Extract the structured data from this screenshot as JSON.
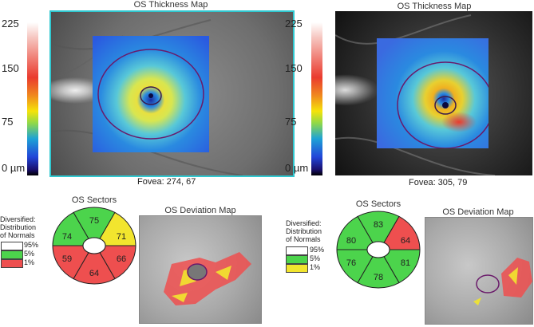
{
  "left": {
    "thickness_title": "OS Thickness Map",
    "scale_ticks": {
      "t225": "225",
      "t150": "150",
      "t75": "75",
      "t0": "0 µm"
    },
    "fovea": "Fovea: 274, 67",
    "sectors_title": "OS Sectors",
    "sectors": {
      "top": "75",
      "upper_left": "74",
      "upper_right": "71",
      "lower_left": "59",
      "bottom": "64",
      "lower_right": "66"
    },
    "sector_colors": {
      "top": "#4cd44c",
      "upper_left": "#4cd44c",
      "upper_right": "#f2e52e",
      "lower_left": "#ee4f4f",
      "bottom": "#ee4f4f",
      "lower_right": "#ee4f4f"
    },
    "deviation_title": "OS Deviation Map"
  },
  "right": {
    "thickness_title": "OS Thickness Map",
    "scale_ticks": {
      "t225": "225",
      "t150": "150",
      "t75": "75",
      "t0": "0 µm"
    },
    "fovea": "Fovea: 305, 79",
    "sectors_title": "OS Sectors",
    "sectors": {
      "top": "83",
      "upper_left": "80",
      "upper_right": "64",
      "lower_left": "76",
      "bottom": "78",
      "lower_right": "81"
    },
    "sector_colors": {
      "top": "#4cd44c",
      "upper_left": "#4cd44c",
      "upper_right": "#ee4f4f",
      "lower_left": "#4cd44c",
      "bottom": "#4cd44c",
      "lower_right": "#4cd44c"
    },
    "deviation_title": "OS Deviation Map"
  },
  "legend": {
    "line1": "Diversified:",
    "line2": "Distribution",
    "line3": "of Normals",
    "p95": "95%",
    "p5": "5%",
    "p1": "1%"
  },
  "colors": {
    "frame_cyan": "#30c8d0",
    "normal_white": "#ffffff",
    "normal_green": "#4cd44c",
    "borderline_yellow": "#f2e52e",
    "abnormal_red": "#ee4f4f",
    "ring_purple": "#6a1a6a"
  }
}
